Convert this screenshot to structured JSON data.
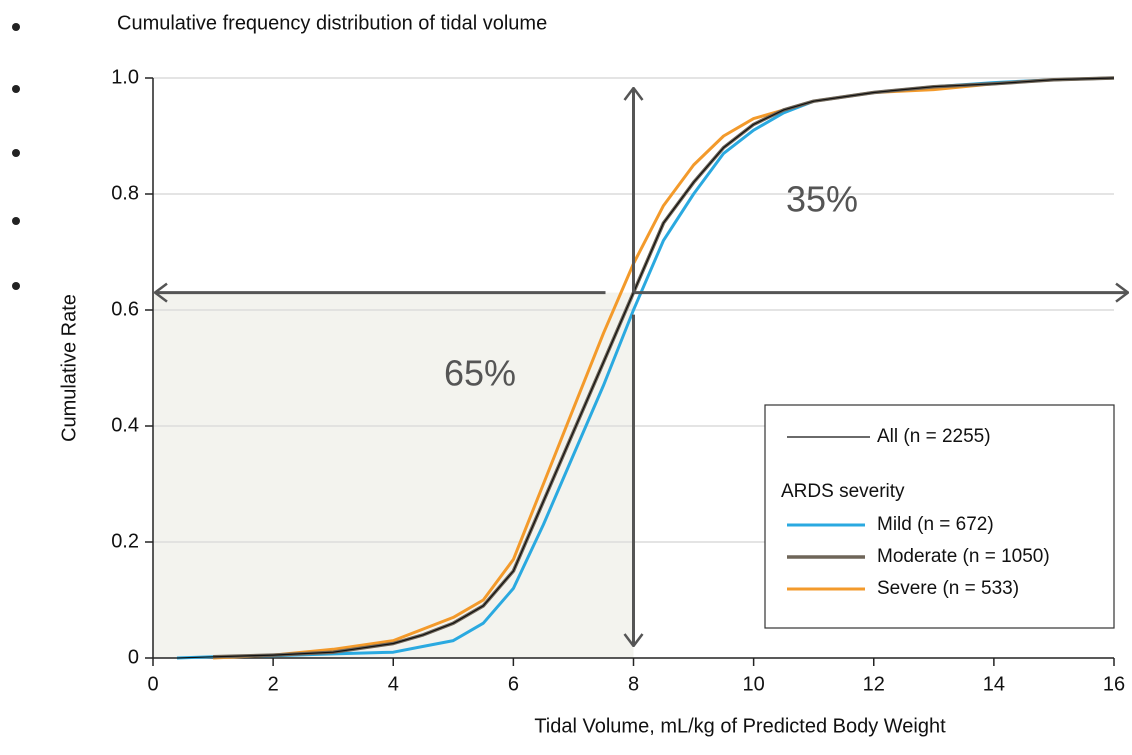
{
  "chart_data": {
    "type": "line",
    "title": "Cumulative frequency distribution of tidal volume",
    "x_label": "Tidal Volume, mL/kg of Predicted Body Weight",
    "y_label": "Cumulative Rate",
    "x": [
      0.4,
      1,
      2,
      3,
      4,
      4.5,
      5,
      5.5,
      6,
      6.5,
      7,
      7.5,
      8,
      8.5,
      9,
      9.5,
      10,
      10.5,
      11,
      12,
      13,
      14,
      15,
      16
    ],
    "series": [
      {
        "name": "All (n = 2255)",
        "color": "#111111",
        "width": 1.2,
        "values": [
          0,
          0.002,
          0.005,
          0.01,
          0.025,
          0.04,
          0.06,
          0.09,
          0.15,
          0.27,
          0.39,
          0.51,
          0.63,
          0.75,
          0.82,
          0.88,
          0.92,
          0.945,
          0.96,
          0.975,
          0.985,
          0.99,
          0.997,
          1
        ]
      },
      {
        "name": "Mild (n = 672)",
        "color": "#2aa9e0",
        "width": 3,
        "values": [
          0,
          0.002,
          0.004,
          0.007,
          0.01,
          0.02,
          0.03,
          0.06,
          0.12,
          0.23,
          0.35,
          0.47,
          0.6,
          0.72,
          0.8,
          0.87,
          0.91,
          0.94,
          0.96,
          0.975,
          0.985,
          0.992,
          0.997,
          1
        ]
      },
      {
        "name": "Moderate (n = 1050)",
        "color": "#6e6558",
        "width": 3.5,
        "values": [
          null,
          0.002,
          0.005,
          0.01,
          0.025,
          0.04,
          0.06,
          0.09,
          0.15,
          0.27,
          0.39,
          0.51,
          0.63,
          0.75,
          0.82,
          0.88,
          0.92,
          0.945,
          0.96,
          0.975,
          0.985,
          0.99,
          0.997,
          1
        ]
      },
      {
        "name": "Severe (n = 533)",
        "color": "#f39a2b",
        "width": 3,
        "values": [
          null,
          0,
          0.005,
          0.015,
          0.03,
          0.05,
          0.07,
          0.1,
          0.17,
          0.3,
          0.43,
          0.56,
          0.68,
          0.78,
          0.85,
          0.9,
          0.93,
          0.945,
          0.96,
          0.975,
          0.98,
          0.99,
          0.997,
          1
        ]
      }
    ],
    "legend_title": "ARDS severity",
    "xlim": [
      0,
      16
    ],
    "xticks": [
      0,
      2,
      4,
      6,
      8,
      10,
      12,
      14,
      16
    ],
    "ylim": [
      0,
      1
    ],
    "yticks": [
      0,
      0.2,
      0.4,
      0.6,
      0.8,
      {
        "value": 1,
        "label": "1.0"
      }
    ],
    "grid": true,
    "reference": {
      "x": 8,
      "y": 0.63
    },
    "annotations": [
      "35%",
      "65%"
    ]
  }
}
